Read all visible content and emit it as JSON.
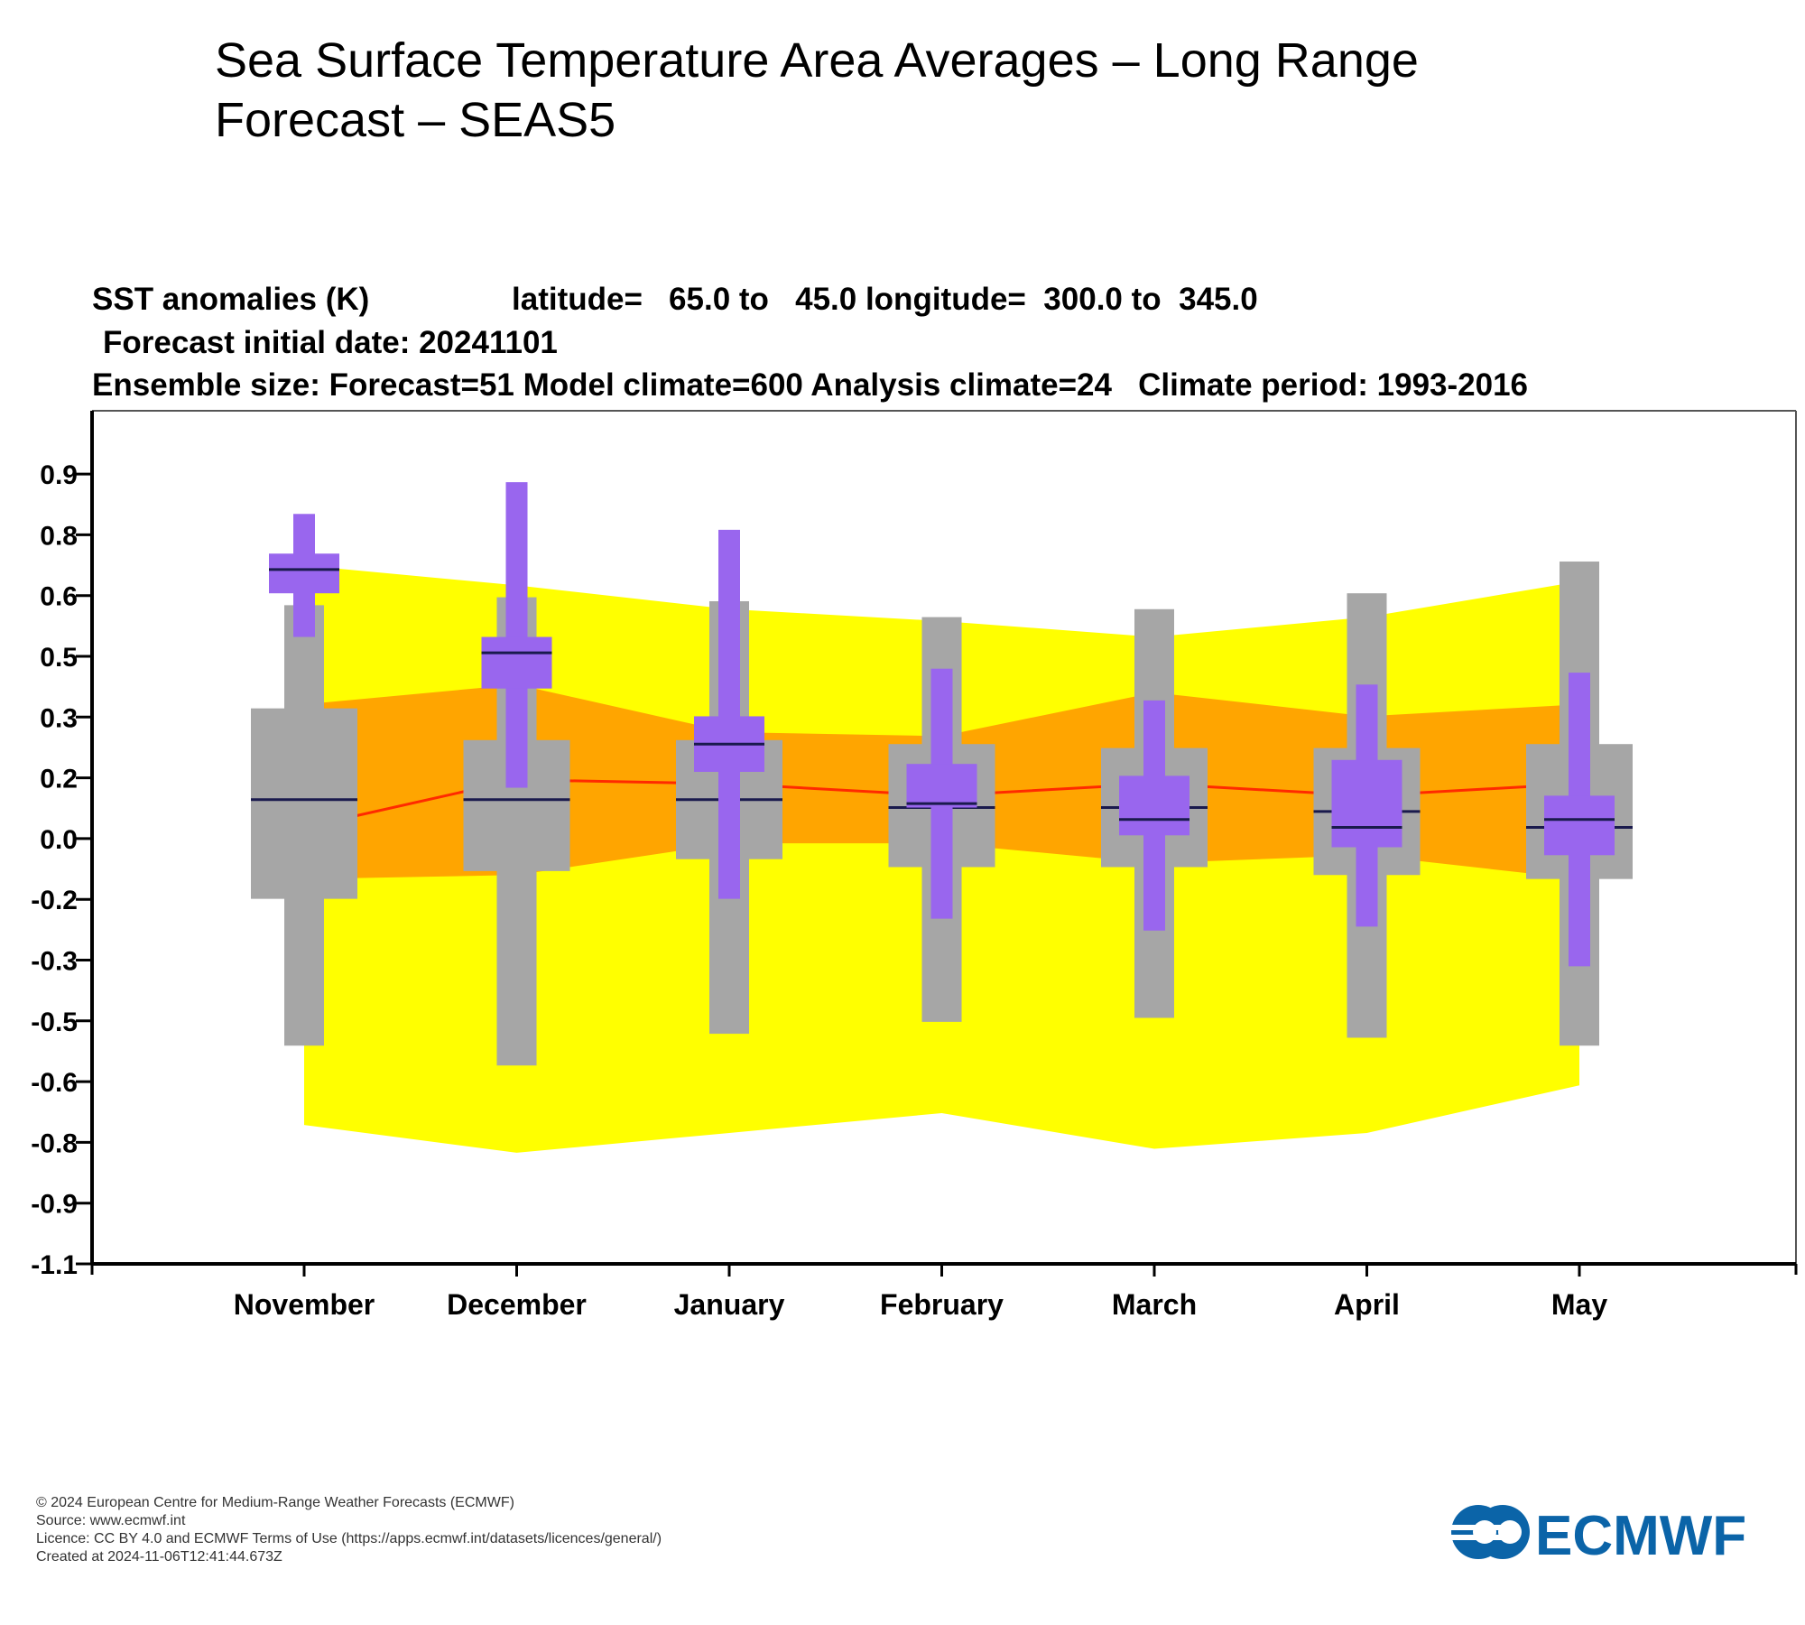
{
  "page": {
    "title": "Sea Surface Temperature Area Averages – Long Range Forecast – SEAS5"
  },
  "chart_header": {
    "line1_quantity": "SST anomalies (K)",
    "line1_region": "latitude=   65.0 to   45.0 longitude=  300.0 to  345.0",
    "line2": "Forecast initial date: 20241101",
    "line3": "Ensemble size: Forecast=51 Model climate=600 Analysis climate=24   Climate period: 1993-2016"
  },
  "footer": {
    "copyright": "© 2024 European Centre for Medium-Range Weather Forecasts (ECMWF)",
    "source": "Source: www.ecmwf.int",
    "licence": "Licence: CC BY 4.0 and ECMWF Terms of Use (https://apps.ecmwf.int/datasets/licences/general/)",
    "created": "Created at 2024-11-06T12:41:44.673Z"
  },
  "logo": {
    "text": "ECMWF"
  },
  "colors": {
    "climate_outer_band": "#ffff00",
    "climate_inner_band": "#ffa500",
    "climate_median_line": "#ff2a00",
    "model_climate_box": "#a6a6a6",
    "forecast_box": "#9966ee",
    "median_marker": "#1a1a4d",
    "logo": "#0b64a8"
  },
  "chart_data": {
    "type": "box",
    "x": [
      "November",
      "December",
      "January",
      "February",
      "March",
      "April",
      "May"
    ],
    "y_tick_labels": [
      "0.9",
      "0.8",
      "0.6",
      "0.5",
      "0.3",
      "0.2",
      "0.0",
      "-0.2",
      "-0.3",
      "-0.5",
      "-0.6",
      "-0.8",
      "-0.9",
      "-1.1"
    ],
    "ylim": [
      -1.15,
      1.0
    ],
    "grid": false,
    "climate_band_outer": {
      "low": [
        -0.8,
        -0.87,
        -0.82,
        -0.77,
        -0.86,
        -0.82,
        -0.7
      ],
      "high": [
        0.61,
        0.56,
        0.5,
        0.47,
        0.43,
        0.48,
        0.57
      ]
    },
    "climate_band_inner": {
      "low": [
        -0.18,
        -0.17,
        -0.09,
        -0.09,
        -0.14,
        -0.12,
        -0.18
      ],
      "high": [
        0.26,
        0.31,
        0.19,
        0.18,
        0.29,
        0.23,
        0.26
      ]
    },
    "climate_median": [
      -0.05,
      0.07,
      0.06,
      0.03,
      0.06,
      0.03,
      0.06
    ],
    "model_climate": {
      "whisker_low": [
        -0.6,
        -0.65,
        -0.57,
        -0.54,
        -0.53,
        -0.58,
        -0.6
      ],
      "box_low": [
        -0.23,
        -0.16,
        -0.13,
        -0.15,
        -0.15,
        -0.17,
        -0.18
      ],
      "median": [
        0.02,
        0.02,
        0.02,
        0.0,
        0.0,
        -0.01,
        -0.05
      ],
      "box_high": [
        0.25,
        0.17,
        0.17,
        0.16,
        0.15,
        0.15,
        0.16
      ],
      "whisker_high": [
        0.51,
        0.53,
        0.52,
        0.48,
        0.5,
        0.54,
        0.62
      ]
    },
    "forecast": {
      "whisker_low": [
        0.43,
        0.05,
        -0.23,
        -0.28,
        -0.31,
        -0.3,
        -0.4
      ],
      "box_low": [
        0.54,
        0.3,
        0.09,
        0.0,
        -0.07,
        -0.1,
        -0.12
      ],
      "median": [
        0.6,
        0.39,
        0.16,
        0.01,
        -0.03,
        -0.05,
        -0.03
      ],
      "box_high": [
        0.64,
        0.43,
        0.23,
        0.11,
        0.08,
        0.12,
        0.03
      ],
      "whisker_high": [
        0.74,
        0.82,
        0.7,
        0.35,
        0.27,
        0.31,
        0.34
      ]
    }
  }
}
